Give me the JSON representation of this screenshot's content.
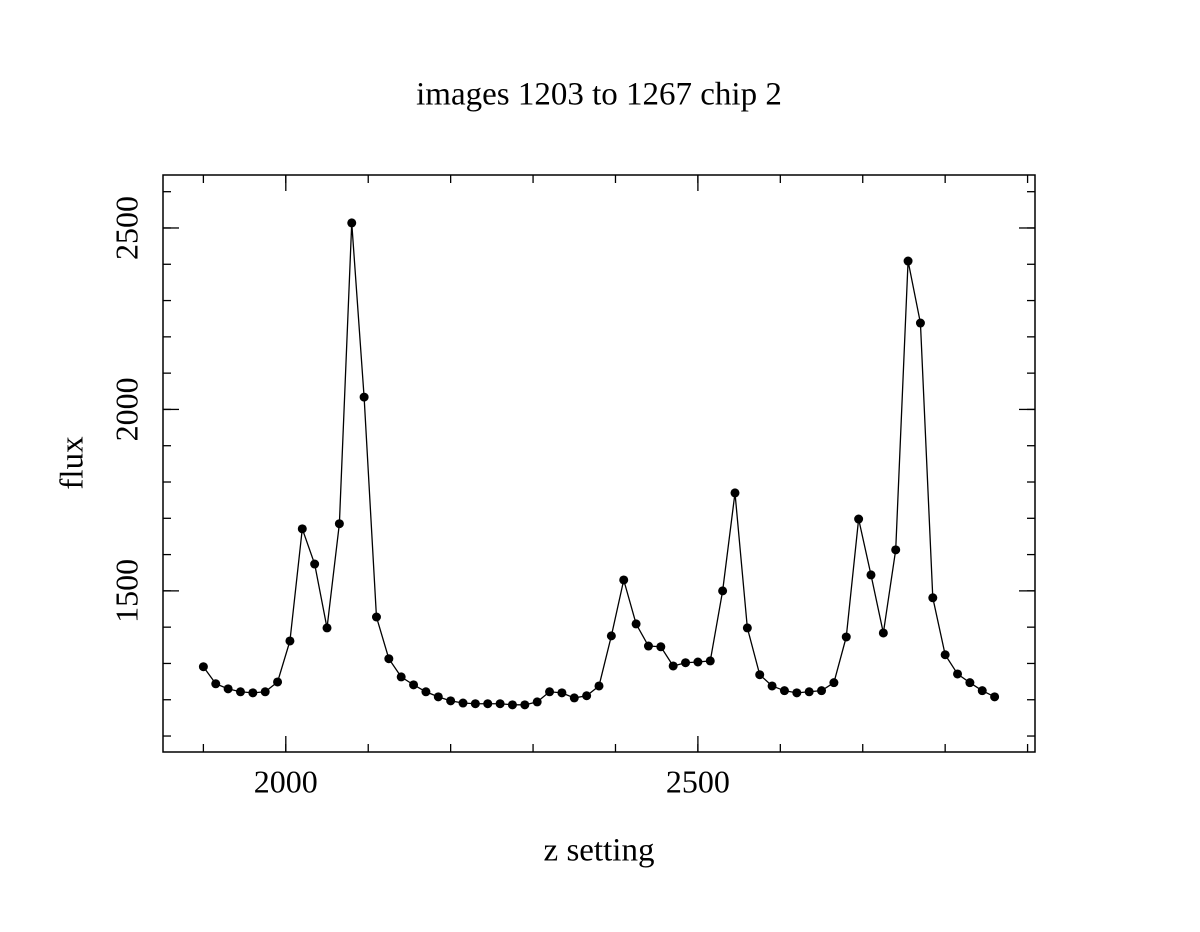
{
  "chart_data": {
    "type": "line",
    "title": "images 1203 to 1267 chip 2",
    "xlabel": "z setting",
    "ylabel": "flux",
    "x": [
      1900,
      1915,
      1930,
      1945,
      1960,
      1975,
      1990,
      2005,
      2020,
      2035,
      2050,
      2065,
      2080,
      2095,
      2110,
      2125,
      2140,
      2155,
      2170,
      2185,
      2200,
      2215,
      2230,
      2245,
      2260,
      2275,
      2290,
      2305,
      2320,
      2335,
      2350,
      2365,
      2380,
      2395,
      2410,
      2425,
      2440,
      2455,
      2470,
      2485,
      2500,
      2515,
      2530,
      2545,
      2560,
      2575,
      2590,
      2605,
      2620,
      2635,
      2650,
      2665,
      2680,
      2695,
      2710,
      2725,
      2740,
      2755,
      2770,
      2785,
      2800,
      2815,
      2830,
      2845,
      2860
    ],
    "series": [
      {
        "color": "#000000",
        "values": [
          1291,
          1244,
          1230,
          1222,
          1219,
          1222,
          1249,
          1362,
          1671,
          1574,
          1398,
          1685,
          2514,
          2034,
          1428,
          1313,
          1263,
          1241,
          1222,
          1208,
          1197,
          1191,
          1189,
          1189,
          1189,
          1186,
          1186,
          1194,
          1222,
          1219,
          1205,
          1211,
          1238,
          1376,
          1530,
          1409,
          1348,
          1346,
          1293,
          1302,
          1304,
          1307,
          1500,
          1770,
          1398,
          1269,
          1238,
          1225,
          1219,
          1222,
          1225,
          1247,
          1373,
          1698,
          1544,
          1384,
          1613,
          2409,
          2238,
          1481,
          1324,
          1271,
          1247,
          1225,
          1208
        ]
      }
    ],
    "xlim": [
      1851,
      2909
    ],
    "ylim": [
      1056,
      2646
    ],
    "xticks": [
      2000,
      2500
    ],
    "yticks": [
      1500,
      2000,
      2500
    ],
    "xminorticks": [
      1900,
      2000,
      2100,
      2200,
      2300,
      2400,
      2500,
      2600,
      2700,
      2800,
      2900
    ],
    "yminorticks": [
      1100,
      1200,
      1300,
      1400,
      1500,
      1600,
      1700,
      1800,
      1900,
      2000,
      2100,
      2200,
      2300,
      2400,
      2500,
      2600
    ],
    "markers": true,
    "grid": false
  }
}
